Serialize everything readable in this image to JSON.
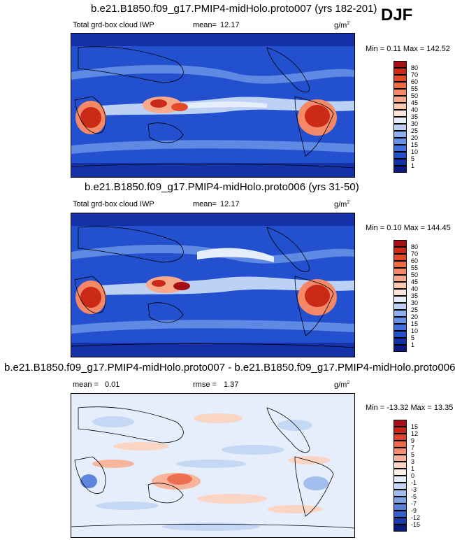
{
  "season": "DJF",
  "units": "g/m",
  "units_exp": "2",
  "chart_data": [
    {
      "type": "heatmap",
      "title": "b.e21.B1850.f09_g17.PMIP4-midHolo.proto007 (yrs 182-201)",
      "variable": "Total grd-box cloud IWP",
      "mean_label": "mean=",
      "mean": "12.17",
      "min_max": "Min =  0.11 Max = 142.52",
      "min": 0.11,
      "max": 142.52,
      "levels": [
        "80",
        "70",
        "60",
        "55",
        "50",
        "45",
        "40",
        "35",
        "30",
        "25",
        "20",
        "15",
        "10",
        "5",
        "1"
      ],
      "colors": [
        "#a50f15",
        "#cb2a18",
        "#e34a2a",
        "#ef6a44",
        "#f58866",
        "#f9a98b",
        "#fccab3",
        "#fde6d8",
        "#e7eefb",
        "#bcd1f3",
        "#8fb0ec",
        "#6690e6",
        "#3f6fdf",
        "#2350cf",
        "#1431a7",
        "#0a1a7e"
      ]
    },
    {
      "type": "heatmap",
      "title": "b.e21.B1850.f09_g17.PMIP4-midHolo.proto006 (yrs 31-50)",
      "variable": "Total grd-box cloud IWP",
      "mean_label": "mean=",
      "mean": "12.17",
      "min_max": "Min =  0.10 Max = 144.45",
      "min": 0.1,
      "max": 144.45,
      "levels": [
        "80",
        "70",
        "60",
        "55",
        "50",
        "45",
        "40",
        "35",
        "30",
        "25",
        "20",
        "15",
        "10",
        "5",
        "1"
      ],
      "colors": [
        "#a50f15",
        "#cb2a18",
        "#e34a2a",
        "#ef6a44",
        "#f58866",
        "#f9a98b",
        "#fccab3",
        "#fde6d8",
        "#e7eefb",
        "#bcd1f3",
        "#8fb0ec",
        "#6690e6",
        "#3f6fdf",
        "#2350cf",
        "#1431a7",
        "#0a1a7e"
      ]
    },
    {
      "type": "heatmap",
      "title": "b.e21.B1850.f09_g17.PMIP4-midHolo.proto007 - b.e21.B1850.f09_g17.PMIP4-midHolo.proto006",
      "mean_label": "mean =",
      "mean": "0.01",
      "rmse_label": "rmse =",
      "rmse": "1.37",
      "min_max": "Min = -13.32 Max =  13.35",
      "min": -13.32,
      "max": 13.35,
      "levels": [
        "15",
        "12",
        "9",
        "7",
        "5",
        "3",
        "1",
        "0",
        "-1",
        "-3",
        "-5",
        "-7",
        "-9",
        "-12",
        "-15"
      ],
      "colors": [
        "#a50f15",
        "#c8231a",
        "#e0442d",
        "#ee6948",
        "#f58d6e",
        "#f9b298",
        "#fcd4c2",
        "#fdeee6",
        "#e6eefb",
        "#c3d6f4",
        "#9ebcee",
        "#7aa0e6",
        "#577fdc",
        "#3760cf",
        "#1c3cae",
        "#0a1a7e"
      ]
    }
  ]
}
